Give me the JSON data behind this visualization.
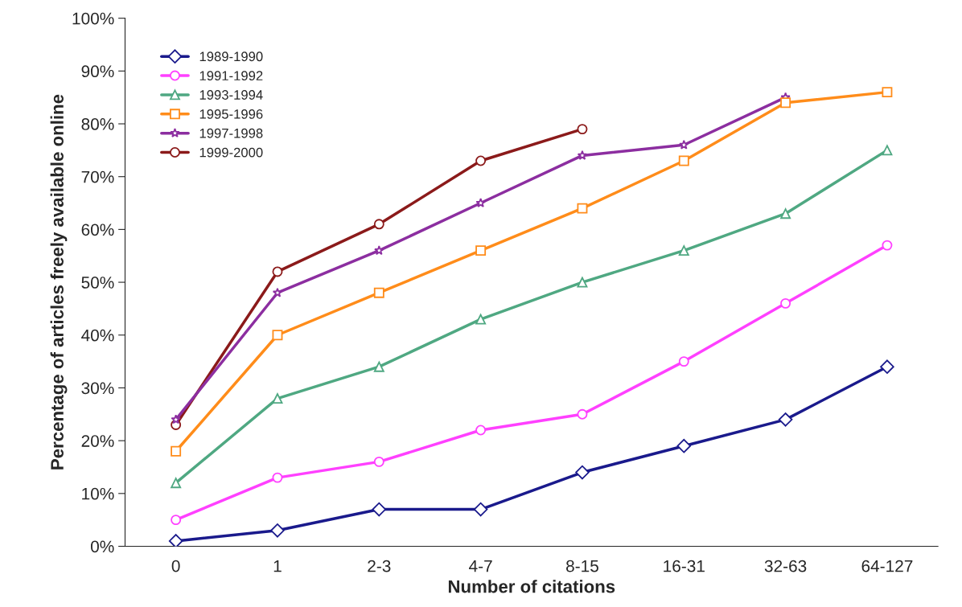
{
  "chart_data": {
    "type": "line",
    "xlabel": "Number of citations",
    "ylabel": "Percentage of articles freely available online",
    "categories": [
      "0",
      "1",
      "2-3",
      "4-7",
      "8-15",
      "16-31",
      "32-63",
      "64-127"
    ],
    "ylim": [
      0,
      100
    ],
    "yticks": [
      {
        "value": 0,
        "label": "0%"
      },
      {
        "value": 10,
        "label": "10%"
      },
      {
        "value": 20,
        "label": "20%"
      },
      {
        "value": 30,
        "label": "30%"
      },
      {
        "value": 40,
        "label": "40%"
      },
      {
        "value": 50,
        "label": "50%"
      },
      {
        "value": 60,
        "label": "60%"
      },
      {
        "value": 70,
        "label": "70%"
      },
      {
        "value": 80,
        "label": "80%"
      },
      {
        "value": 90,
        "label": "90%"
      },
      {
        "value": 100,
        "label": "100%"
      }
    ],
    "grid": false,
    "legend": "top left",
    "series": [
      {
        "name": "1989-1990",
        "color": "#1a1a8c",
        "marker": "diamond",
        "values": [
          1,
          3,
          7,
          7,
          14,
          19,
          24,
          34
        ]
      },
      {
        "name": "1991-1992",
        "color": "#ff40ff",
        "marker": "circle",
        "values": [
          5,
          13,
          16,
          22,
          25,
          35,
          46,
          57
        ]
      },
      {
        "name": "1993-1994",
        "color": "#4fa882",
        "marker": "triangle",
        "values": [
          12,
          28,
          34,
          43,
          50,
          56,
          63,
          75
        ]
      },
      {
        "name": "1995-1996",
        "color": "#ff8c1a",
        "marker": "square",
        "values": [
          18,
          40,
          48,
          56,
          64,
          73,
          84,
          86
        ]
      },
      {
        "name": "1997-1998",
        "color": "#8c2ea0",
        "marker": "star",
        "values": [
          24,
          48,
          56,
          65,
          74,
          76,
          85,
          null
        ]
      },
      {
        "name": "1999-2000",
        "color": "#8b1a1a",
        "marker": "circle",
        "values": [
          23,
          52,
          61,
          73,
          79,
          null,
          null,
          null
        ]
      }
    ]
  }
}
